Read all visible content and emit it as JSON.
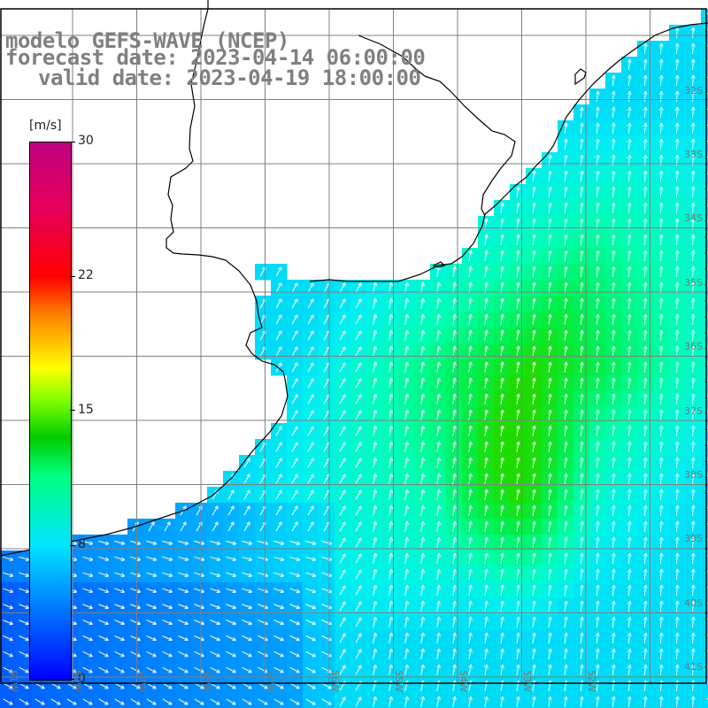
{
  "title": {
    "line1": "modelo GEFS-WAVE (NCEP)",
    "line2": "forecast date: 2023-04-14 06:00:00",
    "line3": "valid date: 2023-04-19 18:00:00"
  },
  "legend": {
    "unit": "[m/s]",
    "ticks": [
      "30",
      "22",
      "15",
      "8",
      "0"
    ],
    "colors": [
      "#0000ff",
      "#0080ff",
      "#00e5ff",
      "#00ff80",
      "#00cc00",
      "#80ff00",
      "#ffff00",
      "#ff8000",
      "#ff0000",
      "#c00080"
    ]
  },
  "lat_labels": [
    "32S",
    "33S",
    "34S",
    "35S",
    "36S",
    "37S",
    "38S",
    "39S",
    "40S",
    "41S"
  ],
  "lon_labels": [
    "61W",
    "60W",
    "59W",
    "58W",
    "57W",
    "56W",
    "55W",
    "54W",
    "53W",
    "52W"
  ],
  "colors": {
    "land": "#ffffff",
    "grid": "#808080",
    "coast": "#000000",
    "arrow": "#ffffff"
  }
}
